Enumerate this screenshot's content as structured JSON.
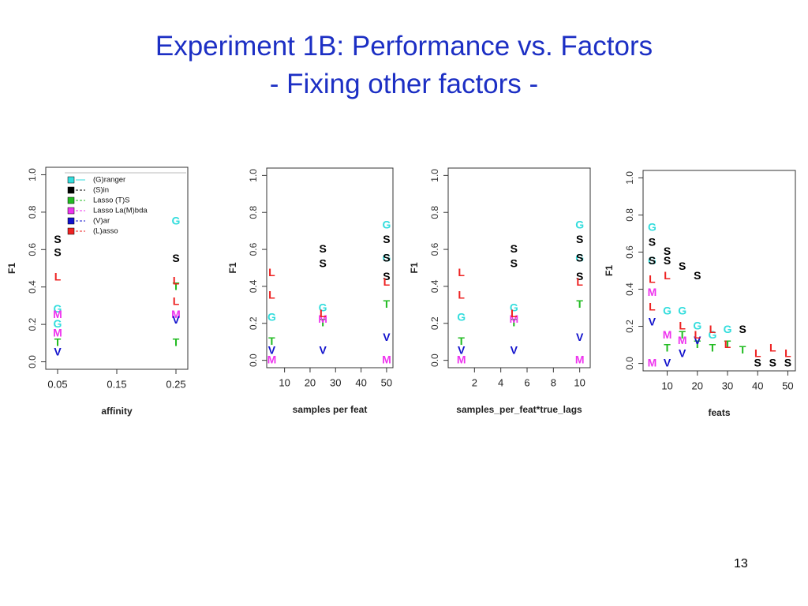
{
  "slide": {
    "title": [
      "Experiment 1B: Performance vs. Factors",
      "- Fixing other factors -"
    ],
    "page_number": "13"
  },
  "chart_data": [
    {
      "type": "scatter",
      "ylabel": "F1",
      "xlabel": "affinity",
      "legend": "top-left",
      "xlim": [
        0.03,
        0.27
      ],
      "ylim": [
        -0.04,
        1.04
      ],
      "xticks": [
        0.05,
        0.15,
        0.25
      ],
      "yticks": [
        {
          "value": 0,
          "label": "0.0"
        },
        0.2,
        0.4,
        0.6,
        0.8,
        {
          "value": 1,
          "label": "1.0"
        }
      ],
      "series": [
        {
          "name": "(G)ranger",
          "marker": "G",
          "color": "#33dddd",
          "x": [
            0.05,
            0.05,
            0.25
          ],
          "values": [
            0.28,
            0.2,
            0.75
          ]
        },
        {
          "name": "(S)in",
          "marker": "S",
          "color": "#000000",
          "x": [
            0.05,
            0.05,
            0.25
          ],
          "values": [
            0.65,
            0.58,
            0.55
          ]
        },
        {
          "name": "Lasso (T)S",
          "marker": "T",
          "color": "#22bb22",
          "x": [
            0.05,
            0.25,
            0.25
          ],
          "values": [
            0.1,
            0.4,
            0.1
          ]
        },
        {
          "name": "Lasso La(M)bda",
          "marker": "M",
          "color": "#ee33ee",
          "x": [
            0.05,
            0.05,
            0.25
          ],
          "values": [
            0.15,
            0.25,
            0.25
          ]
        },
        {
          "name": "(V)ar",
          "marker": "V",
          "color": "#1111cc",
          "x": [
            0.05,
            0.25
          ],
          "values": [
            0.05,
            0.22
          ]
        },
        {
          "name": "(L)asso",
          "marker": "L",
          "color": "#ee2222",
          "x": [
            0.05,
            0.25,
            0.25
          ],
          "values": [
            0.45,
            0.43,
            0.32
          ]
        }
      ]
    },
    {
      "type": "scatter",
      "ylabel": "F1",
      "xlabel": "samples per feat",
      "xlim": [
        3,
        52.5
      ],
      "ylim": [
        -0.04,
        1.04
      ],
      "xticks": [
        10,
        20,
        30,
        40,
        50
      ],
      "yticks": [
        {
          "value": 0,
          "label": "0.0"
        },
        0.2,
        0.4,
        0.6,
        0.8,
        {
          "value": 1,
          "label": "1.0"
        }
      ],
      "series": [
        {
          "marker": "G",
          "color": "#33dddd",
          "x": [
            5,
            25,
            50,
            50
          ],
          "values": [
            0.23,
            0.28,
            0.73,
            0.55
          ]
        },
        {
          "marker": "S",
          "color": "#000000",
          "x": [
            25,
            25,
            50,
            50,
            50
          ],
          "values": [
            0.6,
            0.52,
            0.65,
            0.55,
            0.45
          ]
        },
        {
          "marker": "T",
          "color": "#22bb22",
          "x": [
            5,
            25,
            50
          ],
          "values": [
            0.1,
            0.2,
            0.3
          ]
        },
        {
          "marker": "M",
          "color": "#ee33ee",
          "x": [
            5,
            25,
            50
          ],
          "values": [
            0.0,
            0.22,
            0.0
          ]
        },
        {
          "marker": "V",
          "color": "#1111cc",
          "x": [
            5,
            25,
            50
          ],
          "values": [
            0.05,
            0.05,
            0.12
          ]
        },
        {
          "marker": "L",
          "color": "#ee2222",
          "x": [
            5,
            5,
            25,
            50
          ],
          "values": [
            0.47,
            0.35,
            0.25,
            0.42
          ]
        }
      ]
    },
    {
      "type": "scatter",
      "ylabel": "F1",
      "xlabel": "samples_per_feat*true_lags",
      "xlim": [
        0,
        10.8
      ],
      "ylim": [
        -0.04,
        1.04
      ],
      "xticks": [
        2,
        4,
        6,
        8,
        10
      ],
      "yticks": [
        {
          "value": 0,
          "label": "0.0"
        },
        0.2,
        0.4,
        0.6,
        0.8,
        {
          "value": 1,
          "label": "1.0"
        }
      ],
      "series": [
        {
          "marker": "G",
          "color": "#33dddd",
          "x": [
            1,
            5,
            10,
            10
          ],
          "values": [
            0.23,
            0.28,
            0.73,
            0.55
          ]
        },
        {
          "marker": "S",
          "color": "#000000",
          "x": [
            5,
            5,
            10,
            10,
            10
          ],
          "values": [
            0.6,
            0.52,
            0.65,
            0.55,
            0.45
          ]
        },
        {
          "marker": "T",
          "color": "#22bb22",
          "x": [
            1,
            5,
            10
          ],
          "values": [
            0.1,
            0.2,
            0.3
          ]
        },
        {
          "marker": "M",
          "color": "#ee33ee",
          "x": [
            1,
            5,
            10
          ],
          "values": [
            0.0,
            0.22,
            0.0
          ]
        },
        {
          "marker": "V",
          "color": "#1111cc",
          "x": [
            1,
            5,
            10
          ],
          "values": [
            0.05,
            0.05,
            0.12
          ]
        },
        {
          "marker": "L",
          "color": "#ee2222",
          "x": [
            1,
            1,
            5,
            10
          ],
          "values": [
            0.47,
            0.35,
            0.25,
            0.42
          ]
        }
      ]
    },
    {
      "type": "scatter",
      "ylabel": "F1",
      "xlabel": "feats",
      "xlim": [
        2,
        52.5
      ],
      "ylim": [
        -0.04,
        1.04
      ],
      "xticks": [
        10,
        20,
        30,
        40,
        50
      ],
      "yticks": [
        {
          "value": 0,
          "label": "0.0"
        },
        0.2,
        0.4,
        0.6,
        0.8,
        {
          "value": 1,
          "label": "1.0"
        }
      ],
      "series": [
        {
          "marker": "G",
          "color": "#33dddd",
          "x": [
            5,
            5,
            10,
            15,
            20,
            25,
            30
          ],
          "values": [
            0.73,
            0.55,
            0.28,
            0.28,
            0.2,
            0.15,
            0.18
          ]
        },
        {
          "marker": "S",
          "color": "#000000",
          "x": [
            5,
            5,
            10,
            10,
            15,
            20,
            35,
            40,
            45,
            50
          ],
          "values": [
            0.65,
            0.55,
            0.6,
            0.55,
            0.52,
            0.47,
            0.18,
            0.0,
            0.0,
            0.0
          ]
        },
        {
          "marker": "T",
          "color": "#22bb22",
          "x": [
            10,
            15,
            20,
            25,
            30,
            35
          ],
          "values": [
            0.08,
            0.15,
            0.1,
            0.08,
            0.1,
            0.07
          ]
        },
        {
          "marker": "M",
          "color": "#ee33ee",
          "x": [
            5,
            5,
            10,
            15
          ],
          "values": [
            0.38,
            0.0,
            0.15,
            0.12
          ]
        },
        {
          "marker": "V",
          "color": "#1111cc",
          "x": [
            5,
            10,
            15,
            20
          ],
          "values": [
            0.22,
            0.0,
            0.05,
            0.12
          ]
        },
        {
          "marker": "L",
          "color": "#ee2222",
          "x": [
            5,
            5,
            10,
            15,
            20,
            25,
            30,
            40,
            45,
            50
          ],
          "values": [
            0.45,
            0.3,
            0.47,
            0.2,
            0.15,
            0.18,
            0.1,
            0.05,
            0.08,
            0.05
          ]
        }
      ]
    }
  ]
}
